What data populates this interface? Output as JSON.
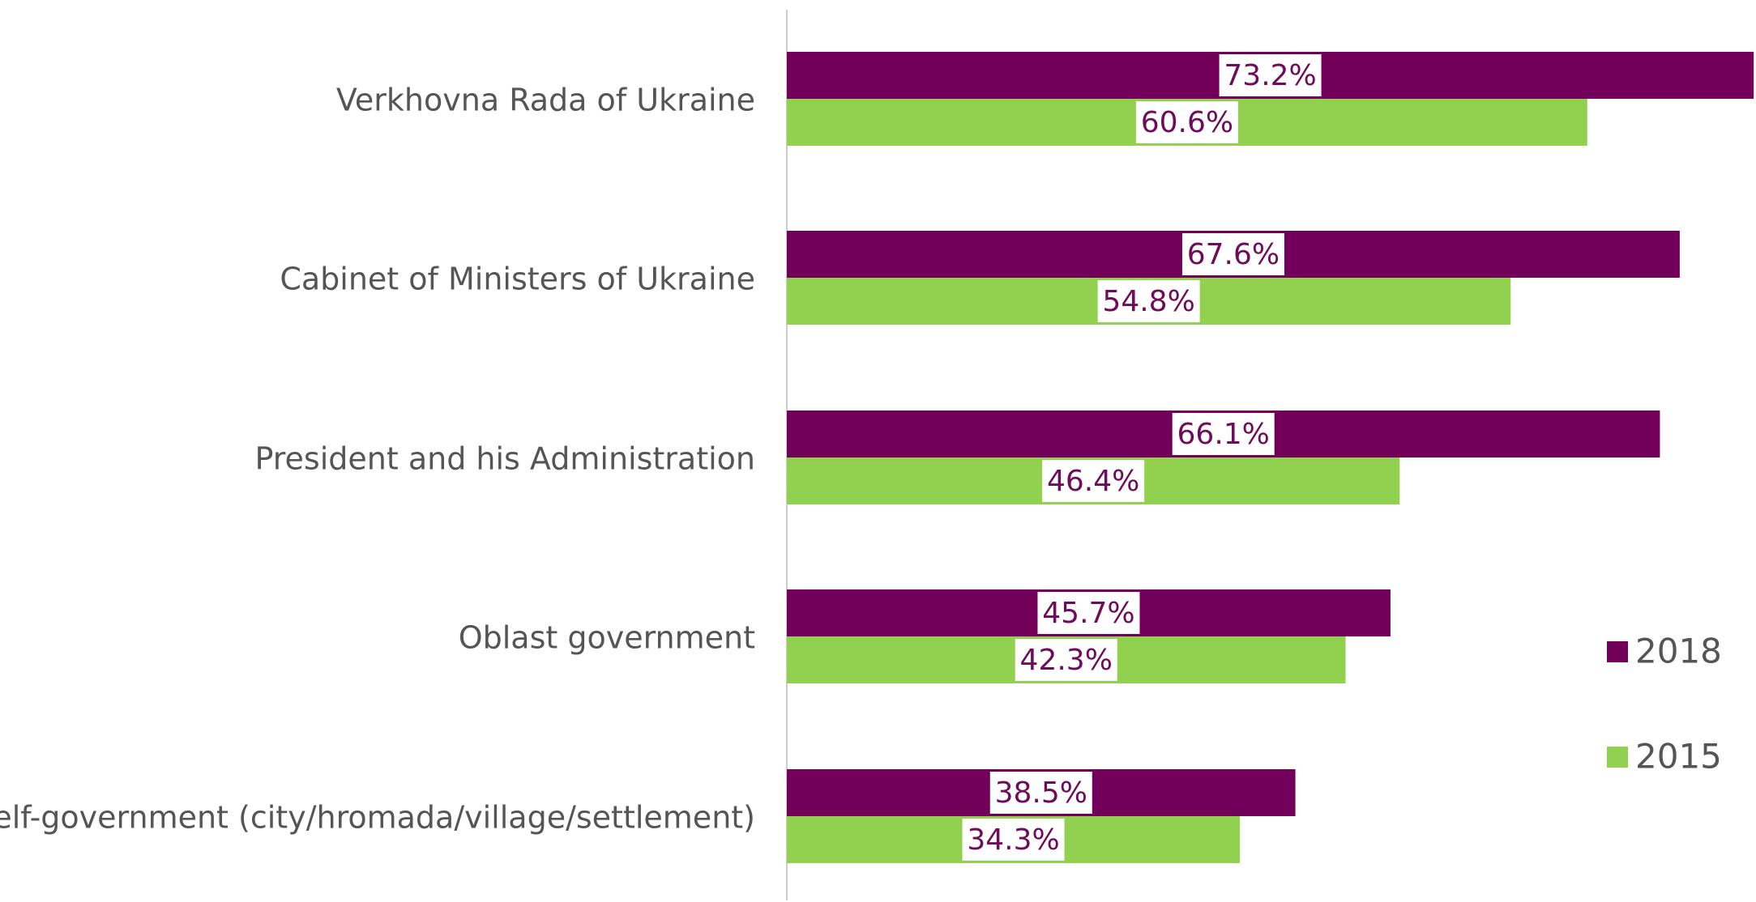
{
  "chart_data": {
    "type": "bar",
    "orientation": "horizontal",
    "categories": [
      "Verkhovna Rada of Ukraine",
      "Cabinet of Ministers of Ukraine",
      "President and his Administration",
      "Oblast government",
      "Local self-government (city/hromada/village/settlement)"
    ],
    "series": [
      {
        "name": "2018",
        "color": "#72005a",
        "values": [
          73.2,
          67.6,
          66.1,
          45.7,
          38.5
        ],
        "labels": [
          "73.2%",
          "67.6%",
          "66.1%",
          "45.7%",
          "38.5%"
        ]
      },
      {
        "name": "2015",
        "color": "#92d050",
        "values": [
          60.6,
          54.8,
          46.4,
          42.3,
          34.3
        ],
        "labels": [
          "60.6%",
          "54.8%",
          "46.4%",
          "42.3%",
          "34.3%"
        ]
      }
    ],
    "legend_position": "right",
    "grid": false,
    "label_color": "#6e0b5a",
    "text_color": "#555555",
    "axis_color": "#cccccc"
  }
}
